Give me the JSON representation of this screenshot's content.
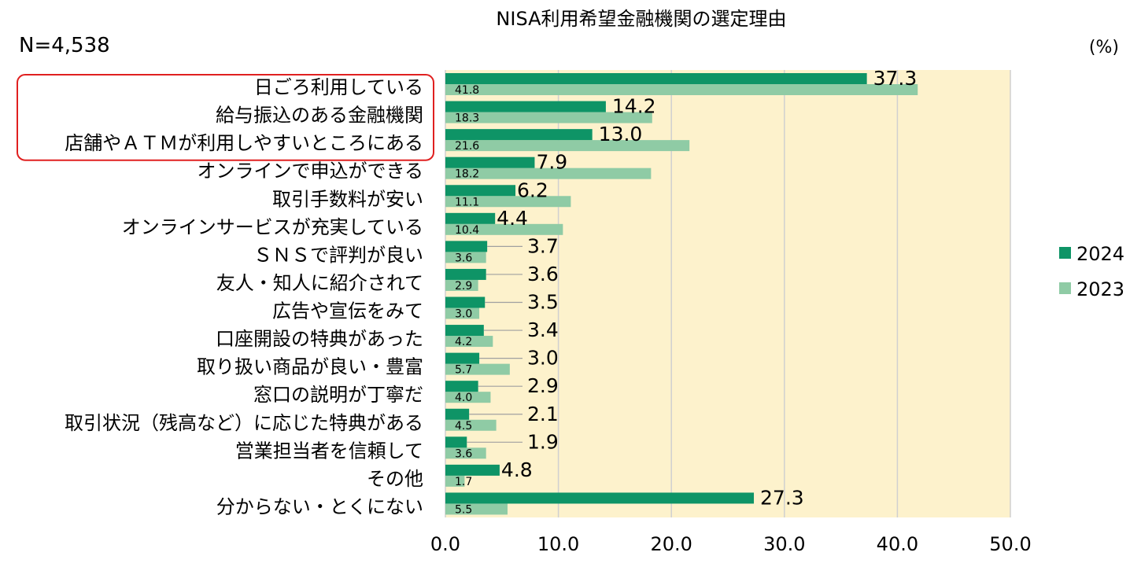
{
  "chart_data": {
    "type": "bar",
    "orientation": "horizontal",
    "title": "NISA利用希望金融機関の選定理由",
    "sample_size": "N=4,538",
    "unit_label": "(%)",
    "categories": [
      "日ごろ利用している",
      "給与振込のある金融機関",
      "店舗やＡＴＭが利用しやすいところにある",
      "オンラインで申込ができる",
      "取引手数料が安い",
      "オンラインサービスが充実している",
      "ＳＮＳで評判が良い",
      "友人・知人に紹介されて",
      "広告や宣伝をみて",
      "口座開設の特典があった",
      "取り扱い商品が良い・豊富",
      "窓口の説明が丁寧だ",
      "取引状況（残高など）に応じた特典がある",
      "営業担当者を信頼して",
      "その他",
      "分からない・とくにない"
    ],
    "series": [
      {
        "name": "2024",
        "color": "#0e9466",
        "values": [
          37.3,
          14.2,
          13.0,
          7.9,
          6.2,
          4.4,
          3.7,
          3.6,
          3.5,
          3.4,
          3.0,
          2.9,
          2.1,
          1.9,
          4.8,
          27.3
        ],
        "labels": [
          "37.3",
          "14.2",
          "13.0",
          "7.9",
          "6.2",
          "4.4",
          "3.7",
          "3.6",
          "3.5",
          "3.4",
          "3.0",
          "2.9",
          "2.1",
          "1.9",
          "4.8",
          "27.3"
        ]
      },
      {
        "name": "2023",
        "color": "#8fcba5",
        "values": [
          41.8,
          18.3,
          21.6,
          18.2,
          11.1,
          10.4,
          3.6,
          2.9,
          3.0,
          4.2,
          5.7,
          4.0,
          4.5,
          3.6,
          1.7,
          5.5
        ],
        "labels": [
          "41.8",
          "18.3",
          "21.6",
          "18.2",
          "11.1",
          "10.4",
          "3.6",
          "2.9",
          "3.0",
          "4.2",
          "5.7",
          "4.0",
          "4.5",
          "3.6",
          "1.7",
          "5.5"
        ]
      }
    ],
    "xlim": [
      0,
      50
    ],
    "xticks": [
      "0.0",
      "10.0",
      "20.0",
      "30.0",
      "40.0",
      "50.0"
    ],
    "xtick_values": [
      0,
      10,
      20,
      30,
      40,
      50
    ],
    "grid": true,
    "legend_position": "right",
    "plot_background": "#fdf2cc",
    "highlight_color": "#e02020",
    "highlighted_categories": [
      0,
      1,
      2
    ]
  }
}
